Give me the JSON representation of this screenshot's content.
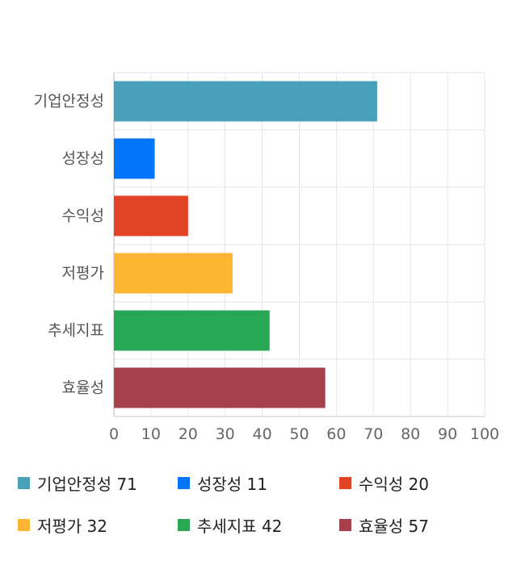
{
  "chart_data": {
    "type": "bar",
    "orientation": "horizontal",
    "categories": [
      "기업안정성",
      "성장성",
      "수익성",
      "저평가",
      "추세지표",
      "효율성"
    ],
    "values": [
      71,
      11,
      20,
      32,
      42,
      57
    ],
    "colors": [
      "#48a0b9",
      "#0375fb",
      "#e24325",
      "#fdb634",
      "#28a854",
      "#a6404d"
    ],
    "xlim": [
      0,
      100
    ],
    "xticks": [
      "0",
      "10",
      "20",
      "30",
      "40",
      "50",
      "60",
      "70",
      "80",
      "90",
      "100"
    ],
    "grid": true,
    "legend_position": "bottom",
    "legend": [
      {
        "label": "기업안정성 71",
        "color": "#48a0b9"
      },
      {
        "label": "성장성 11",
        "color": "#0375fb"
      },
      {
        "label": "수익성 20",
        "color": "#e24325"
      },
      {
        "label": "저평가 32",
        "color": "#fdb634"
      },
      {
        "label": "추세지표 42",
        "color": "#28a854"
      },
      {
        "label": "효율성 57",
        "color": "#a6404d"
      }
    ]
  }
}
